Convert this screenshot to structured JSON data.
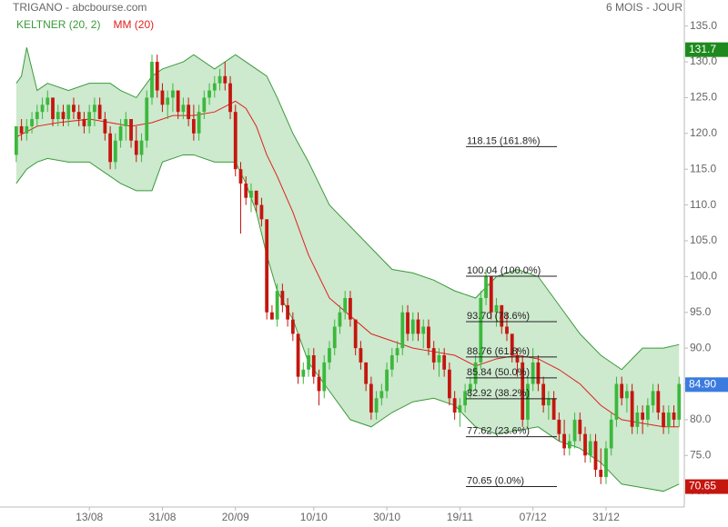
{
  "chart_data": {
    "type": "candlestick",
    "title": "TRIGANO - abcbourse.com",
    "period": "6 MOIS - JOUR",
    "xlim": [
      -0.5,
      128
    ],
    "xticks": [
      {
        "value": 14,
        "label": "13/08"
      },
      {
        "value": 28,
        "label": "31/08"
      },
      {
        "value": 42,
        "label": "20/09"
      },
      {
        "value": 57,
        "label": "10/10"
      },
      {
        "value": 71,
        "label": "30/10"
      },
      {
        "value": 85,
        "label": "19/11"
      },
      {
        "value": 99,
        "label": "07/12"
      },
      {
        "value": 113,
        "label": "31/12"
      }
    ],
    "ylim": [
      67.8,
      136.1
    ],
    "yticks": [
      {
        "value": 70,
        "label": "70.0"
      },
      {
        "value": 75,
        "label": "75.0"
      },
      {
        "value": 80,
        "label": "80.0"
      },
      {
        "value": 85,
        "label": "85.0"
      },
      {
        "value": 90,
        "label": "90.0"
      },
      {
        "value": 95,
        "label": "95.0"
      },
      {
        "value": 100,
        "label": "100.0"
      },
      {
        "value": 105,
        "label": "105.0"
      },
      {
        "value": 110,
        "label": "110.0"
      },
      {
        "value": 115,
        "label": "115.0"
      },
      {
        "value": 120,
        "label": "120.0"
      },
      {
        "value": 125,
        "label": "125.0"
      },
      {
        "value": 130,
        "label": "130.0"
      },
      {
        "value": 135,
        "label": "135.0"
      }
    ],
    "up_color": "#3cb83c",
    "down_color": "#c4160f",
    "ohlc": [
      [
        117,
        121,
        116,
        121
      ],
      [
        121,
        122,
        119,
        120
      ],
      [
        120,
        122,
        119,
        121
      ],
      [
        121,
        123,
        120,
        122
      ],
      [
        122,
        124,
        121,
        123
      ],
      [
        123,
        125,
        122,
        124
      ],
      [
        124,
        126,
        123,
        125
      ],
      [
        125,
        125,
        121,
        122
      ],
      [
        122,
        124,
        121,
        123
      ],
      [
        123,
        124,
        121,
        122
      ],
      [
        122,
        124,
        121,
        124
      ],
      [
        124,
        125,
        122,
        123
      ],
      [
        123,
        124,
        121,
        122
      ],
      [
        122,
        123,
        120,
        121
      ],
      [
        121,
        124,
        120,
        123
      ],
      [
        123,
        125,
        121,
        124
      ],
      [
        124,
        125,
        122,
        122
      ],
      [
        122,
        123,
        119,
        120
      ],
      [
        120,
        121,
        115,
        116
      ],
      [
        116,
        120,
        115,
        119
      ],
      [
        119,
        122,
        118,
        121
      ],
      [
        121,
        123,
        119,
        122
      ],
      [
        122,
        122,
        118,
        119
      ],
      [
        119,
        121,
        116,
        117
      ],
      [
        117,
        120,
        116,
        119
      ],
      [
        119,
        126,
        118,
        125
      ],
      [
        125,
        131,
        124,
        130
      ],
      [
        130,
        131,
        125,
        126
      ],
      [
        126,
        127,
        123,
        124
      ],
      [
        124,
        126,
        122,
        125
      ],
      [
        125,
        127,
        123,
        126
      ],
      [
        126,
        126,
        122,
        123
      ],
      [
        123,
        125,
        122,
        124
      ],
      [
        124,
        125,
        121,
        122
      ],
      [
        122,
        124,
        119,
        120
      ],
      [
        120,
        124,
        119,
        123
      ],
      [
        123,
        126,
        122,
        125
      ],
      [
        125,
        127,
        124,
        126
      ],
      [
        126,
        128,
        125,
        127
      ],
      [
        127,
        129,
        126,
        128
      ],
      [
        128,
        130,
        126,
        127
      ],
      [
        127,
        128,
        122,
        123
      ],
      [
        123,
        124,
        114,
        115
      ],
      [
        115,
        116,
        106,
        113
      ],
      [
        113,
        114,
        110,
        111
      ],
      [
        111,
        113,
        109,
        112
      ],
      [
        112,
        112,
        109,
        110
      ],
      [
        110,
        111,
        107,
        108
      ],
      [
        108,
        108,
        94,
        95
      ],
      [
        95,
        96,
        94,
        94
      ],
      [
        94,
        99,
        93,
        98
      ],
      [
        98,
        99,
        95,
        96
      ],
      [
        96,
        97,
        93,
        94
      ],
      [
        94,
        95,
        91,
        92
      ],
      [
        92,
        92,
        85,
        86
      ],
      [
        86,
        88,
        85,
        87
      ],
      [
        87,
        90,
        86,
        89
      ],
      [
        89,
        90,
        85,
        86
      ],
      [
        86,
        87,
        82,
        84
      ],
      [
        84,
        89,
        83,
        88
      ],
      [
        88,
        91,
        87,
        90
      ],
      [
        90,
        94,
        89,
        93
      ],
      [
        93,
        96,
        92,
        95
      ],
      [
        95,
        98,
        94,
        97
      ],
      [
        97,
        98,
        93,
        94
      ],
      [
        94,
        94,
        89,
        90
      ],
      [
        90,
        91,
        87,
        88
      ],
      [
        88,
        88,
        84,
        85
      ],
      [
        85,
        86,
        80,
        81
      ],
      [
        81,
        84,
        80,
        83
      ],
      [
        83,
        85,
        82,
        84
      ],
      [
        84,
        88,
        83,
        87
      ],
      [
        87,
        90,
        86,
        89
      ],
      [
        89,
        91,
        88,
        90
      ],
      [
        90,
        96,
        89,
        95
      ],
      [
        95,
        96,
        91,
        92
      ],
      [
        92,
        95,
        91,
        94
      ],
      [
        94,
        95,
        91,
        92
      ],
      [
        92,
        94,
        90,
        93
      ],
      [
        93,
        94,
        89,
        90
      ],
      [
        90,
        91,
        87,
        88
      ],
      [
        88,
        90,
        86,
        89
      ],
      [
        89,
        90,
        86,
        87
      ],
      [
        87,
        88,
        82,
        83
      ],
      [
        83,
        84,
        80,
        81
      ],
      [
        81,
        83,
        79,
        82
      ],
      [
        82,
        85,
        81,
        84
      ],
      [
        84,
        86,
        83,
        85
      ],
      [
        85,
        89,
        84,
        88
      ],
      [
        88,
        98,
        87,
        97
      ],
      [
        97,
        101,
        96,
        100
      ],
      [
        100,
        100,
        94,
        95
      ],
      [
        95,
        97,
        93,
        96
      ],
      [
        96,
        96,
        92,
        93
      ],
      [
        93,
        95,
        91,
        92
      ],
      [
        92,
        92,
        88,
        89
      ],
      [
        89,
        90,
        86,
        88
      ],
      [
        88,
        89,
        79,
        80
      ],
      [
        80,
        86,
        79,
        85
      ],
      [
        85,
        90,
        84,
        88
      ],
      [
        88,
        89,
        84,
        85
      ],
      [
        85,
        86,
        81,
        82
      ],
      [
        82,
        84,
        80,
        83
      ],
      [
        83,
        84,
        80,
        80
      ],
      [
        80,
        81,
        77,
        78
      ],
      [
        78,
        80,
        75,
        76
      ],
      [
        76,
        78,
        75,
        77
      ],
      [
        77,
        81,
        76,
        80
      ],
      [
        80,
        81,
        77,
        78
      ],
      [
        78,
        79,
        74,
        75
      ],
      [
        75,
        78,
        74,
        77
      ],
      [
        77,
        78,
        72,
        73
      ],
      [
        73,
        76,
        71,
        72
      ],
      [
        72,
        77,
        71,
        76
      ],
      [
        76,
        81,
        75,
        80
      ],
      [
        80,
        86,
        79,
        85
      ],
      [
        85,
        86,
        82,
        83
      ],
      [
        83,
        85,
        81,
        84
      ],
      [
        84,
        85,
        78,
        79
      ],
      [
        79,
        82,
        78,
        81
      ],
      [
        81,
        82,
        78,
        80
      ],
      [
        80,
        83,
        79,
        82
      ],
      [
        82,
        85,
        81,
        84
      ],
      [
        84,
        85,
        80,
        81
      ],
      [
        81,
        82,
        78,
        79
      ],
      [
        79,
        82,
        78,
        81
      ],
      [
        81,
        82,
        79,
        80
      ],
      [
        80,
        86,
        79,
        85
      ]
    ],
    "series": [
      {
        "name": "KELTNER (20, 2)",
        "color": "#3a9a3a",
        "fill": "rgba(76,175,80,0.28)",
        "x": [
          0,
          1,
          2,
          4,
          6,
          10,
          14,
          18,
          20,
          23,
          26,
          28,
          32,
          34,
          38,
          42,
          44,
          46,
          48,
          50,
          53,
          56,
          60,
          64,
          68,
          72,
          76,
          80,
          84,
          88,
          92,
          96,
          100,
          104,
          108,
          112,
          116,
          120,
          124,
          127
        ],
        "upper": [
          127,
          128,
          132,
          126,
          127,
          126,
          127,
          127,
          126,
          125,
          128,
          129,
          130,
          131,
          129,
          131,
          130,
          129,
          128,
          125,
          120,
          116,
          110,
          107,
          104,
          101,
          100.5,
          99.5,
          98,
          97,
          100,
          101,
          100,
          96,
          92,
          89,
          87,
          90,
          90,
          90.5
        ],
        "lower": [
          113,
          114,
          115,
          116,
          116.5,
          116,
          116,
          114,
          113,
          112,
          112,
          116,
          117,
          117,
          116,
          116,
          113,
          109,
          103,
          98,
          94,
          88,
          84,
          80,
          79,
          81,
          82.5,
          83,
          82,
          79,
          78,
          78.5,
          79,
          77,
          76,
          74,
          71,
          70.5,
          70,
          71
        ]
      },
      {
        "name": "MM (20)",
        "color": "#e02020",
        "x": [
          0,
          4,
          8,
          14,
          18,
          22,
          26,
          30,
          34,
          38,
          42,
          44,
          46,
          48,
          50,
          53,
          56,
          60,
          64,
          68,
          72,
          76,
          80,
          84,
          88,
          92,
          96,
          100,
          104,
          108,
          112,
          116,
          120,
          124,
          127
        ],
        "values": [
          119.5,
          121,
          121.5,
          122,
          121.5,
          121,
          121.5,
          122.5,
          122.5,
          123,
          124.5,
          123.5,
          121,
          117,
          114,
          109,
          103,
          97,
          94.5,
          92,
          91,
          90,
          89.5,
          89,
          87.5,
          88.5,
          89,
          88.5,
          87,
          85,
          82,
          80,
          79.5,
          79,
          79
        ]
      }
    ],
    "fibonacci": [
      {
        "value": 118.15,
        "label": "118.15 (161.8%)"
      },
      {
        "value": 100.04,
        "label": "100.04 (100.0%)"
      },
      {
        "value": 93.7,
        "label": "93.70 (78.6%)"
      },
      {
        "value": 88.76,
        "label": "88.76 (61.8%)"
      },
      {
        "value": 85.84,
        "label": "85.84 (50.0%)"
      },
      {
        "value": 82.92,
        "label": "82.92 (38.2%)"
      },
      {
        "value": 77.62,
        "label": "77.62 (23.6%)"
      },
      {
        "value": 70.65,
        "label": "70.65 (0.0%)"
      }
    ],
    "price_markers": [
      {
        "value": 131.7,
        "label": "131.7",
        "color": "#1e8a1e"
      },
      {
        "value": 84.9,
        "label": "84.90",
        "color": "#3a7be0"
      },
      {
        "value": 70.65,
        "label": "70.65",
        "color": "#c4160f"
      }
    ]
  }
}
